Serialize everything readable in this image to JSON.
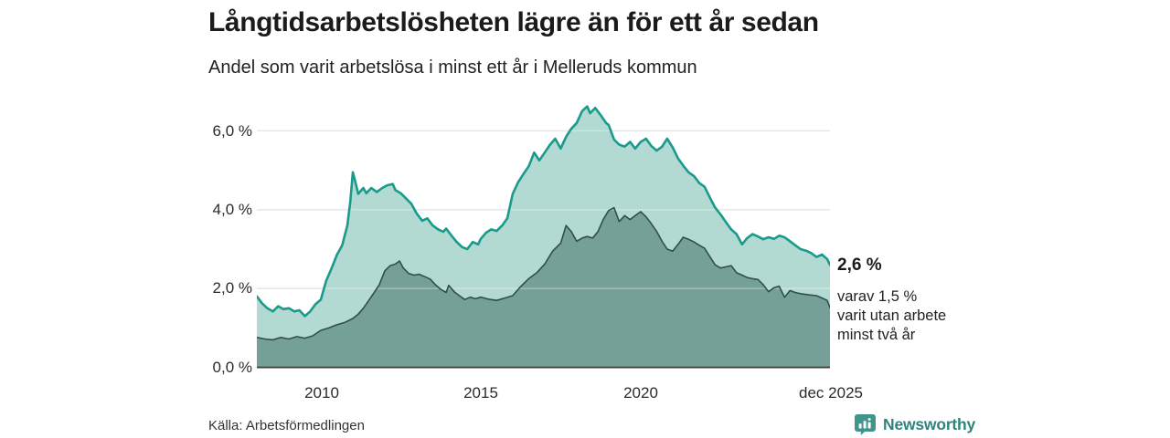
{
  "header": {
    "title": "Långtidsarbetslösheten lägre än för ett år sedan",
    "subtitle": "Andel som varit arbetslösa i minst ett år i Melleruds kommun"
  },
  "chart_data": {
    "type": "area",
    "title": "Långtidsarbetslösheten lägre än för ett år sedan",
    "subtitle": "Andel som varit arbetslösa i minst ett år i Melleruds kommun",
    "x_unit": "decimal_year",
    "x_range": [
      2008.0,
      2025.92
    ],
    "ylim": [
      0,
      6.8
    ],
    "grid": "horizontal",
    "yticks": [
      {
        "value": 6,
        "label": "6,0 %"
      },
      {
        "value": 4,
        "label": "4,0 %"
      },
      {
        "value": 2,
        "label": "2,0 %"
      },
      {
        "value": 0,
        "label": "0,0 %"
      }
    ],
    "xticks": [
      {
        "value": 2010,
        "label": "2010"
      },
      {
        "value": 2015,
        "label": "2015"
      },
      {
        "value": 2020,
        "label": "2020"
      },
      {
        "value": 2025.92,
        "label": "dec 2025"
      }
    ],
    "series": [
      {
        "name": "arbetslosa-minst-ett-ar",
        "stroke": "#199a8b",
        "stroke_width": 2.6,
        "fill": "#b2d9d2",
        "end_value_label": "2,6 %",
        "points": [
          [
            2008.0,
            1.8
          ],
          [
            2008.17,
            1.62
          ],
          [
            2008.33,
            1.5
          ],
          [
            2008.5,
            1.42
          ],
          [
            2008.67,
            1.55
          ],
          [
            2008.83,
            1.48
          ],
          [
            2009.0,
            1.5
          ],
          [
            2009.17,
            1.42
          ],
          [
            2009.33,
            1.45
          ],
          [
            2009.5,
            1.3
          ],
          [
            2009.67,
            1.42
          ],
          [
            2009.83,
            1.6
          ],
          [
            2010.0,
            1.72
          ],
          [
            2010.17,
            2.2
          ],
          [
            2010.33,
            2.5
          ],
          [
            2010.5,
            2.85
          ],
          [
            2010.67,
            3.1
          ],
          [
            2010.83,
            3.6
          ],
          [
            2010.92,
            4.2
          ],
          [
            2011.0,
            4.95
          ],
          [
            2011.08,
            4.7
          ],
          [
            2011.17,
            4.4
          ],
          [
            2011.33,
            4.55
          ],
          [
            2011.42,
            4.42
          ],
          [
            2011.58,
            4.55
          ],
          [
            2011.75,
            4.45
          ],
          [
            2011.92,
            4.55
          ],
          [
            2012.08,
            4.62
          ],
          [
            2012.25,
            4.65
          ],
          [
            2012.33,
            4.5
          ],
          [
            2012.5,
            4.42
          ],
          [
            2012.67,
            4.28
          ],
          [
            2012.83,
            4.15
          ],
          [
            2013.0,
            3.9
          ],
          [
            2013.17,
            3.72
          ],
          [
            2013.33,
            3.78
          ],
          [
            2013.5,
            3.6
          ],
          [
            2013.67,
            3.5
          ],
          [
            2013.83,
            3.44
          ],
          [
            2013.92,
            3.52
          ],
          [
            2014.08,
            3.35
          ],
          [
            2014.25,
            3.18
          ],
          [
            2014.42,
            3.05
          ],
          [
            2014.58,
            3.0
          ],
          [
            2014.75,
            3.18
          ],
          [
            2014.92,
            3.12
          ],
          [
            2015.0,
            3.26
          ],
          [
            2015.17,
            3.42
          ],
          [
            2015.33,
            3.5
          ],
          [
            2015.5,
            3.46
          ],
          [
            2015.67,
            3.6
          ],
          [
            2015.83,
            3.78
          ],
          [
            2016.0,
            4.4
          ],
          [
            2016.17,
            4.7
          ],
          [
            2016.33,
            4.9
          ],
          [
            2016.5,
            5.1
          ],
          [
            2016.67,
            5.45
          ],
          [
            2016.83,
            5.25
          ],
          [
            2017.0,
            5.45
          ],
          [
            2017.17,
            5.65
          ],
          [
            2017.33,
            5.8
          ],
          [
            2017.5,
            5.55
          ],
          [
            2017.67,
            5.85
          ],
          [
            2017.83,
            6.05
          ],
          [
            2018.0,
            6.2
          ],
          [
            2018.17,
            6.5
          ],
          [
            2018.33,
            6.62
          ],
          [
            2018.42,
            6.45
          ],
          [
            2018.58,
            6.58
          ],
          [
            2018.75,
            6.4
          ],
          [
            2018.92,
            6.2
          ],
          [
            2019.0,
            6.15
          ],
          [
            2019.17,
            5.78
          ],
          [
            2019.33,
            5.65
          ],
          [
            2019.5,
            5.6
          ],
          [
            2019.67,
            5.72
          ],
          [
            2019.83,
            5.55
          ],
          [
            2020.0,
            5.72
          ],
          [
            2020.17,
            5.8
          ],
          [
            2020.33,
            5.62
          ],
          [
            2020.5,
            5.5
          ],
          [
            2020.67,
            5.6
          ],
          [
            2020.83,
            5.8
          ],
          [
            2021.0,
            5.58
          ],
          [
            2021.17,
            5.3
          ],
          [
            2021.33,
            5.12
          ],
          [
            2021.5,
            4.95
          ],
          [
            2021.67,
            4.85
          ],
          [
            2021.83,
            4.68
          ],
          [
            2022.0,
            4.58
          ],
          [
            2022.17,
            4.3
          ],
          [
            2022.33,
            4.05
          ],
          [
            2022.5,
            3.88
          ],
          [
            2022.67,
            3.68
          ],
          [
            2022.83,
            3.5
          ],
          [
            2023.0,
            3.38
          ],
          [
            2023.17,
            3.12
          ],
          [
            2023.33,
            3.28
          ],
          [
            2023.5,
            3.38
          ],
          [
            2023.67,
            3.32
          ],
          [
            2023.83,
            3.25
          ],
          [
            2024.0,
            3.3
          ],
          [
            2024.17,
            3.26
          ],
          [
            2024.33,
            3.34
          ],
          [
            2024.5,
            3.3
          ],
          [
            2024.67,
            3.2
          ],
          [
            2024.83,
            3.1
          ],
          [
            2025.0,
            3.0
          ],
          [
            2025.17,
            2.96
          ],
          [
            2025.33,
            2.9
          ],
          [
            2025.5,
            2.8
          ],
          [
            2025.67,
            2.86
          ],
          [
            2025.83,
            2.75
          ],
          [
            2025.92,
            2.6
          ]
        ]
      },
      {
        "name": "utan-arbete-minst-tva-ar",
        "stroke": "#2f4f4a",
        "stroke_width": 1.6,
        "fill": "#74a098",
        "end_value_label": "1,5 %",
        "points": [
          [
            2008.0,
            0.76
          ],
          [
            2008.25,
            0.72
          ],
          [
            2008.5,
            0.7
          ],
          [
            2008.75,
            0.76
          ],
          [
            2009.0,
            0.72
          ],
          [
            2009.25,
            0.78
          ],
          [
            2009.5,
            0.74
          ],
          [
            2009.75,
            0.8
          ],
          [
            2010.0,
            0.94
          ],
          [
            2010.25,
            1.0
          ],
          [
            2010.5,
            1.08
          ],
          [
            2010.75,
            1.14
          ],
          [
            2011.0,
            1.24
          ],
          [
            2011.17,
            1.35
          ],
          [
            2011.33,
            1.5
          ],
          [
            2011.5,
            1.7
          ],
          [
            2011.67,
            1.9
          ],
          [
            2011.83,
            2.1
          ],
          [
            2012.0,
            2.45
          ],
          [
            2012.17,
            2.58
          ],
          [
            2012.33,
            2.62
          ],
          [
            2012.46,
            2.7
          ],
          [
            2012.58,
            2.52
          ],
          [
            2012.75,
            2.38
          ],
          [
            2012.92,
            2.34
          ],
          [
            2013.08,
            2.36
          ],
          [
            2013.25,
            2.3
          ],
          [
            2013.42,
            2.24
          ],
          [
            2013.58,
            2.1
          ],
          [
            2013.75,
            1.98
          ],
          [
            2013.92,
            1.9
          ],
          [
            2014.0,
            2.08
          ],
          [
            2014.17,
            1.92
          ],
          [
            2014.33,
            1.82
          ],
          [
            2014.5,
            1.72
          ],
          [
            2014.67,
            1.78
          ],
          [
            2014.83,
            1.74
          ],
          [
            2015.0,
            1.78
          ],
          [
            2015.25,
            1.73
          ],
          [
            2015.5,
            1.7
          ],
          [
            2015.75,
            1.76
          ],
          [
            2016.0,
            1.82
          ],
          [
            2016.25,
            2.05
          ],
          [
            2016.5,
            2.25
          ],
          [
            2016.75,
            2.4
          ],
          [
            2017.0,
            2.62
          ],
          [
            2017.25,
            2.95
          ],
          [
            2017.5,
            3.15
          ],
          [
            2017.67,
            3.6
          ],
          [
            2017.83,
            3.45
          ],
          [
            2018.0,
            3.2
          ],
          [
            2018.17,
            3.28
          ],
          [
            2018.33,
            3.32
          ],
          [
            2018.5,
            3.28
          ],
          [
            2018.67,
            3.45
          ],
          [
            2018.83,
            3.75
          ],
          [
            2019.0,
            3.98
          ],
          [
            2019.17,
            4.05
          ],
          [
            2019.33,
            3.7
          ],
          [
            2019.5,
            3.85
          ],
          [
            2019.67,
            3.75
          ],
          [
            2019.83,
            3.85
          ],
          [
            2020.0,
            3.95
          ],
          [
            2020.17,
            3.82
          ],
          [
            2020.33,
            3.65
          ],
          [
            2020.5,
            3.45
          ],
          [
            2020.67,
            3.2
          ],
          [
            2020.83,
            3.0
          ],
          [
            2021.0,
            2.95
          ],
          [
            2021.17,
            3.12
          ],
          [
            2021.33,
            3.3
          ],
          [
            2021.5,
            3.25
          ],
          [
            2021.67,
            3.18
          ],
          [
            2021.83,
            3.1
          ],
          [
            2022.0,
            3.02
          ],
          [
            2022.17,
            2.8
          ],
          [
            2022.33,
            2.6
          ],
          [
            2022.5,
            2.52
          ],
          [
            2022.67,
            2.55
          ],
          [
            2022.83,
            2.58
          ],
          [
            2023.0,
            2.4
          ],
          [
            2023.17,
            2.34
          ],
          [
            2023.33,
            2.28
          ],
          [
            2023.5,
            2.25
          ],
          [
            2023.67,
            2.23
          ],
          [
            2023.83,
            2.1
          ],
          [
            2024.0,
            1.92
          ],
          [
            2024.17,
            2.02
          ],
          [
            2024.33,
            2.06
          ],
          [
            2024.5,
            1.78
          ],
          [
            2024.67,
            1.95
          ],
          [
            2024.83,
            1.9
          ],
          [
            2025.0,
            1.87
          ],
          [
            2025.25,
            1.84
          ],
          [
            2025.5,
            1.82
          ],
          [
            2025.67,
            1.76
          ],
          [
            2025.83,
            1.7
          ],
          [
            2025.92,
            1.52
          ]
        ]
      }
    ],
    "annotations": {
      "end_main": "2,6 %",
      "end_sub_lines": [
        "varav 1,5 %",
        "varit utan arbete",
        "minst två år"
      ]
    },
    "legend_position": "none",
    "colors": {
      "grid": "#d9d9d9",
      "baseline": "#3a3a3a",
      "brand_teal": "#2e837a",
      "brand_icon": "#3f958c"
    }
  },
  "footer": {
    "source": "Källa: Arbetsförmedlingen",
    "brand": "Newsworthy"
  }
}
